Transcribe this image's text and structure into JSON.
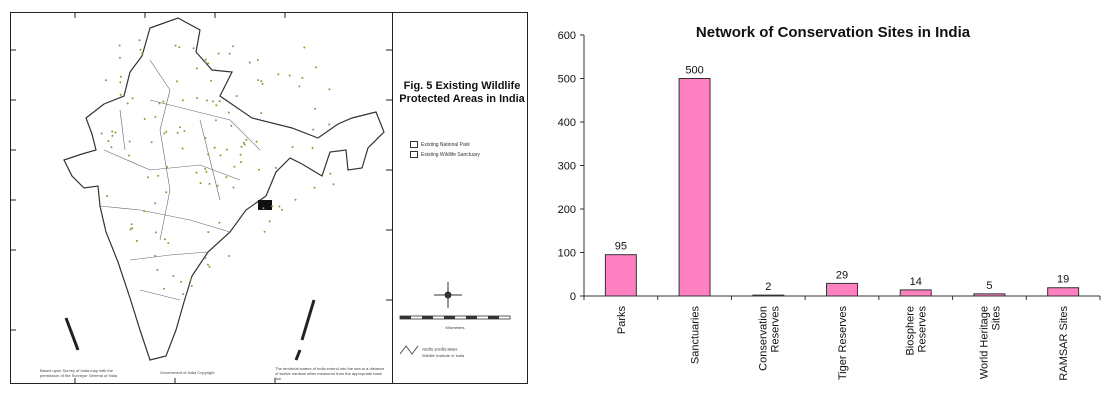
{
  "map_panel": {
    "fig_title": "Fig. 5 Existing Wildlife Protected Areas in India",
    "legend": [
      "Existing National Park",
      "Existing Wildlife Sanctuary"
    ],
    "scale_label": "Kilometers",
    "notes": {
      "survey": "Based upon Survey of India map with the permission of the Surveyor General of India",
      "copyright": "Government of India Copyright",
      "territorial": "The territorial waters of India extend into the sea to a distance of twelve nautical miles measured from the appropriate base line",
      "institute": "Wildlife Institute of India",
      "institute_hindi": "भारतीय वन्यजीव संस्थान"
    },
    "colors": {
      "outline": "#333333",
      "dots": "#8a9a3a",
      "sundarbans": "#111111"
    }
  },
  "chart_data": {
    "type": "bar",
    "title": "Network of Conservation Sites in India",
    "categories": [
      "Parks",
      "Sanctuaries",
      "Conservation\nReserves",
      "Tiger Reserves",
      "Biosphere\nReserves",
      "World Heritage\nSites",
      "RAMSAR Sites"
    ],
    "values": [
      95,
      500,
      2,
      29,
      14,
      5,
      19
    ],
    "ylim": [
      0,
      600
    ],
    "yticks": [
      0,
      100,
      200,
      300,
      400,
      500,
      600
    ],
    "bar_color": "#ff80c0",
    "bar_edge": "#333333",
    "grid": false,
    "legend": "none"
  }
}
